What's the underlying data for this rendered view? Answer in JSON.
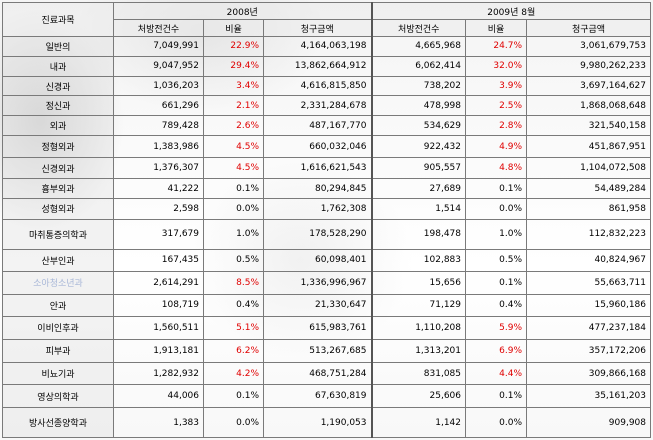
{
  "header": {
    "dept": "진료과목",
    "period1": "2008년",
    "period2": "2009년 8월",
    "count": "처방전건수",
    "ratio": "비율",
    "amount": "청구금액"
  },
  "rows": [
    {
      "dept": "일반의",
      "c1": "7,049,991",
      "r1": "22.9%",
      "r1_red": true,
      "a1": "4,164,063,198",
      "c2": "4,665,968",
      "r2": "24.7%",
      "r2_red": true,
      "a2": "3,061,679,753"
    },
    {
      "dept": "내과",
      "c1": "9,047,952",
      "r1": "29.4%",
      "r1_red": true,
      "a1": "13,862,664,912",
      "c2": "6,062,414",
      "r2": "32.0%",
      "r2_red": true,
      "a2": "9,980,262,233"
    },
    {
      "dept": "신경과",
      "c1": "1,036,203",
      "r1": "3.4%",
      "r1_red": true,
      "a1": "4,616,815,850",
      "c2": "738,202",
      "r2": "3.9%",
      "r2_red": true,
      "a2": "3,697,164,627"
    },
    {
      "dept": "정신과",
      "c1": "661,296",
      "r1": "2.1%",
      "r1_red": true,
      "a1": "2,331,284,678",
      "c2": "478,998",
      "r2": "2.5%",
      "r2_red": true,
      "a2": "1,868,068,648"
    },
    {
      "dept": "외과",
      "c1": "789,428",
      "r1": "2.6%",
      "r1_red": true,
      "a1": "487,167,770",
      "c2": "534,629",
      "r2": "2.8%",
      "r2_red": true,
      "a2": "321,540,158"
    },
    {
      "dept": "정형외과",
      "c1": "1,383,986",
      "r1": "4.5%",
      "r1_red": true,
      "a1": "660,032,046",
      "c2": "922,432",
      "r2": "4.9%",
      "r2_red": true,
      "a2": "451,867,951"
    },
    {
      "dept": "신경외과",
      "c1": "1,376,307",
      "r1": "4.5%",
      "r1_red": true,
      "a1": "1,616,621,543",
      "c2": "905,557",
      "r2": "4.8%",
      "r2_red": true,
      "a2": "1,104,072,508"
    },
    {
      "dept": "흉부외과",
      "c1": "41,222",
      "r1": "0.1%",
      "r1_red": false,
      "a1": "80,294,845",
      "c2": "27,689",
      "r2": "0.1%",
      "r2_red": false,
      "a2": "54,489,284"
    },
    {
      "dept": "성형외과",
      "c1": "2,598",
      "r1": "0.0%",
      "r1_red": false,
      "a1": "1,762,308",
      "c2": "1,514",
      "r2": "0.0%",
      "r2_red": false,
      "a2": "861,958"
    },
    {
      "dept": "마취통증의학과",
      "c1": "317,679",
      "r1": "1.0%",
      "r1_red": false,
      "a1": "178,528,290",
      "c2": "198,478",
      "r2": "1.0%",
      "r2_red": false,
      "a2": "112,832,223"
    },
    {
      "dept": "산부인과",
      "c1": "167,435",
      "r1": "0.5%",
      "r1_red": false,
      "a1": "60,098,401",
      "c2": "102,883",
      "r2": "0.5%",
      "r2_red": false,
      "a2": "40,824,967"
    },
    {
      "dept": "소아청소년과",
      "c1": "2,614,291",
      "r1": "8.5%",
      "r1_red": true,
      "a1": "1,336,996,967",
      "c2": "15,656",
      "r2": "0.1%",
      "r2_red": false,
      "a2": "55,663,711",
      "faded": true
    },
    {
      "dept": "안과",
      "c1": "108,719",
      "r1": "0.4%",
      "r1_red": false,
      "a1": "21,330,647",
      "c2": "71,129",
      "r2": "0.4%",
      "r2_red": false,
      "a2": "15,960,186"
    },
    {
      "dept": "이비인후과",
      "c1": "1,560,511",
      "r1": "5.1%",
      "r1_red": true,
      "a1": "615,983,761",
      "c2": "1,110,208",
      "r2": "5.9%",
      "r2_red": true,
      "a2": "477,237,184"
    },
    {
      "dept": "피부과",
      "c1": "1,913,181",
      "r1": "6.2%",
      "r1_red": true,
      "a1": "513,267,685",
      "c2": "1,313,201",
      "r2": "6.9%",
      "r2_red": true,
      "a2": "357,172,206"
    },
    {
      "dept": "비뇨기과",
      "c1": "1,282,932",
      "r1": "4.2%",
      "r1_red": true,
      "a1": "468,751,284",
      "c2": "831,085",
      "r2": "4.4%",
      "r2_red": true,
      "a2": "309,866,168"
    },
    {
      "dept": "영상의학과",
      "c1": "44,006",
      "r1": "0.1%",
      "r1_red": false,
      "a1": "67,630,819",
      "c2": "25,606",
      "r2": "0.1%",
      "r2_red": false,
      "a2": "35,161,203"
    },
    {
      "dept": "방사선종양학과",
      "c1": "1,383",
      "r1": "0.0%",
      "r1_red": false,
      "a1": "1,190,053",
      "c2": "1,142",
      "r2": "0.0%",
      "r2_red": false,
      "a2": "909,908"
    }
  ]
}
